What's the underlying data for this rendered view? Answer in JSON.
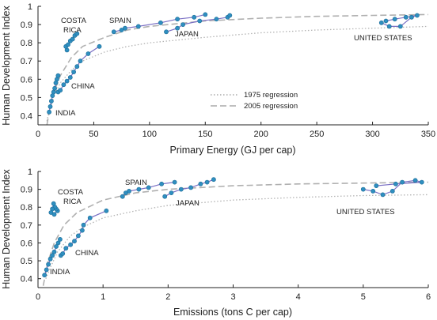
{
  "chart_data": [
    {
      "type": "line",
      "xlabel": "Primary Energy (GJ per cap)",
      "ylabel": "Human Development Index",
      "xlim": [
        0,
        350
      ],
      "ylim": [
        0.35,
        1.0
      ],
      "xticks": [
        0,
        50,
        100,
        150,
        200,
        250,
        300,
        350
      ],
      "yticks": [
        0.4,
        0.5,
        0.6,
        0.7,
        0.8,
        0.9,
        1
      ],
      "grid": false,
      "legend": {
        "placement": "center-right",
        "entries": [
          {
            "label": "1975 regression",
            "style": "dotted"
          },
          {
            "label": "2005 regression",
            "style": "dashed"
          }
        ]
      },
      "regressions": [
        {
          "name": "1975 regression",
          "style": "dotted",
          "x": [
            8,
            10,
            15,
            20,
            30,
            40,
            60,
            80,
            100,
            150,
            200,
            250,
            300,
            350
          ],
          "y": [
            0.37,
            0.43,
            0.52,
            0.58,
            0.65,
            0.7,
            0.75,
            0.78,
            0.8,
            0.83,
            0.855,
            0.87,
            0.88,
            0.89
          ]
        },
        {
          "name": "2005 regression",
          "style": "dashed",
          "x": [
            8,
            10,
            15,
            20,
            30,
            40,
            60,
            80,
            100,
            150,
            200,
            250,
            300,
            350
          ],
          "y": [
            0.35,
            0.42,
            0.54,
            0.62,
            0.72,
            0.78,
            0.83,
            0.87,
            0.89,
            0.92,
            0.935,
            0.945,
            0.95,
            0.955
          ]
        }
      ],
      "series": [
        {
          "name": "INDIA",
          "x": [
            10,
            11,
            12,
            13,
            14,
            15,
            16,
            17,
            18
          ],
          "y": [
            0.42,
            0.45,
            0.48,
            0.51,
            0.53,
            0.55,
            0.58,
            0.6,
            0.62
          ]
        },
        {
          "name": "CHINA",
          "x": [
            18,
            20,
            23,
            26,
            29,
            32,
            35,
            38,
            45,
            55
          ],
          "y": [
            0.53,
            0.54,
            0.57,
            0.59,
            0.61,
            0.64,
            0.67,
            0.7,
            0.74,
            0.78
          ]
        },
        {
          "name": "COSTA RICA",
          "x": [
            26,
            25,
            27,
            29,
            31,
            33,
            35
          ],
          "y": [
            0.76,
            0.78,
            0.79,
            0.81,
            0.82,
            0.84,
            0.85
          ]
        },
        {
          "name": "SPAIN",
          "x": [
            68,
            75,
            78,
            90,
            110,
            125,
            140,
            150
          ],
          "y": [
            0.86,
            0.87,
            0.88,
            0.89,
            0.91,
            0.93,
            0.94,
            0.955
          ]
        },
        {
          "name": "JAPAN",
          "x": [
            115,
            125,
            130,
            145,
            160,
            170,
            172
          ],
          "y": [
            0.86,
            0.88,
            0.9,
            0.92,
            0.93,
            0.94,
            0.95
          ]
        },
        {
          "name": "UNITED STATES",
          "x": [
            308,
            315,
            325,
            335,
            340,
            330,
            320,
            312
          ],
          "y": [
            0.91,
            0.89,
            0.89,
            0.94,
            0.95,
            0.94,
            0.93,
            0.92
          ]
        }
      ],
      "labels": [
        "COSTA",
        "RICA",
        "SPAIN",
        "JAPAN",
        "CHINA",
        "INDIA",
        "UNITED STATES"
      ]
    },
    {
      "type": "line",
      "xlabel": "Emissions (tons C per cap)",
      "ylabel": "Human Development Index",
      "xlim": [
        0,
        6
      ],
      "ylim": [
        0.35,
        1.0
      ],
      "xticks": [
        0,
        1,
        2,
        3,
        4,
        5,
        6
      ],
      "yticks": [
        0.4,
        0.5,
        0.6,
        0.7,
        0.8,
        0.9,
        1
      ],
      "grid": false,
      "regressions": [
        {
          "name": "1975 regression",
          "style": "dotted",
          "x": [
            0.12,
            0.2,
            0.3,
            0.5,
            0.7,
            1.0,
            1.5,
            2.0,
            3.0,
            4.0,
            5.0,
            6.0
          ],
          "y": [
            0.4,
            0.47,
            0.55,
            0.64,
            0.69,
            0.74,
            0.78,
            0.81,
            0.84,
            0.855,
            0.865,
            0.87
          ]
        },
        {
          "name": "2005 regression",
          "style": "dashed",
          "x": [
            0.08,
            0.15,
            0.25,
            0.4,
            0.6,
            1.0,
            1.5,
            2.0,
            3.0,
            4.0,
            5.0,
            6.0
          ],
          "y": [
            0.36,
            0.49,
            0.6,
            0.7,
            0.77,
            0.84,
            0.88,
            0.9,
            0.92,
            0.93,
            0.935,
            0.94
          ]
        }
      ],
      "series": [
        {
          "name": "INDIA",
          "x": [
            0.1,
            0.13,
            0.16,
            0.19,
            0.22,
            0.25,
            0.28,
            0.31,
            0.34
          ],
          "y": [
            0.42,
            0.45,
            0.48,
            0.51,
            0.53,
            0.55,
            0.58,
            0.6,
            0.62
          ]
        },
        {
          "name": "CHINA",
          "x": [
            0.35,
            0.38,
            0.43,
            0.5,
            0.56,
            0.62,
            0.68,
            0.7,
            0.8,
            1.05
          ],
          "y": [
            0.53,
            0.54,
            0.57,
            0.59,
            0.61,
            0.64,
            0.67,
            0.7,
            0.74,
            0.78
          ]
        },
        {
          "name": "COSTA RICA",
          "x": [
            0.2,
            0.25,
            0.3,
            0.28,
            0.26,
            0.22,
            0.24
          ],
          "y": [
            0.77,
            0.76,
            0.78,
            0.79,
            0.8,
            0.79,
            0.82
          ]
        },
        {
          "name": "SPAIN",
          "x": [
            1.3,
            1.35,
            1.4,
            1.55,
            1.7,
            1.9,
            2.1
          ],
          "y": [
            0.86,
            0.88,
            0.89,
            0.9,
            0.91,
            0.93,
            0.94
          ]
        },
        {
          "name": "JAPAN",
          "x": [
            1.95,
            2.05,
            2.2,
            2.35,
            2.5,
            2.6,
            2.7
          ],
          "y": [
            0.86,
            0.88,
            0.9,
            0.91,
            0.93,
            0.94,
            0.955
          ]
        },
        {
          "name": "UNITED STATES",
          "x": [
            5.0,
            5.15,
            5.3,
            5.45,
            5.6,
            5.8,
            5.9,
            5.5,
            5.2
          ],
          "y": [
            0.9,
            0.89,
            0.87,
            0.89,
            0.94,
            0.95,
            0.94,
            0.93,
            0.92
          ]
        }
      ],
      "labels": [
        "COSTA",
        "RICA",
        "SPAIN",
        "JAPAN",
        "CHINA",
        "INDIA",
        "UNITED STATES"
      ]
    }
  ]
}
